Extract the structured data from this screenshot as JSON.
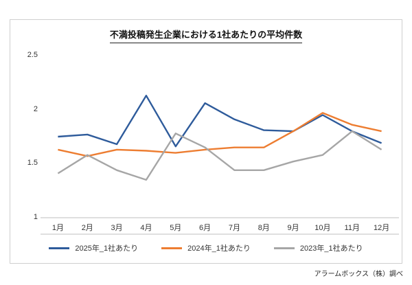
{
  "source_note": "アラームボックス（株）調べ",
  "chart_data": {
    "type": "line",
    "title": "不満投稿発生企業における1社あたりの平均件数",
    "categories": [
      "1月",
      "2月",
      "3月",
      "4月",
      "5月",
      "6月",
      "7月",
      "8月",
      "9月",
      "10月",
      "11月",
      "12月"
    ],
    "series": [
      {
        "name": "2025年_1社あたり",
        "color": "#2e5b9b",
        "values": [
          1.75,
          1.77,
          1.68,
          2.13,
          1.66,
          2.06,
          1.91,
          1.81,
          1.8,
          1.95,
          1.8,
          1.69
        ]
      },
      {
        "name": "2024年_1社あたり",
        "color": "#ed7d31",
        "values": [
          1.63,
          1.57,
          1.63,
          1.62,
          1.6,
          1.63,
          1.65,
          1.65,
          1.8,
          1.97,
          1.86,
          1.8
        ]
      },
      {
        "name": "2023年_1社あたり",
        "color": "#a6a6a6",
        "values": [
          1.41,
          1.58,
          1.44,
          1.35,
          1.78,
          1.65,
          1.44,
          1.44,
          1.52,
          1.58,
          1.8,
          1.63
        ]
      }
    ],
    "ylim": [
      1,
      2.5
    ],
    "yticks": [
      2.5,
      2,
      1.5,
      1
    ],
    "grid": false,
    "legend_position": "bottom",
    "axis_color": "#bfbfbf"
  }
}
